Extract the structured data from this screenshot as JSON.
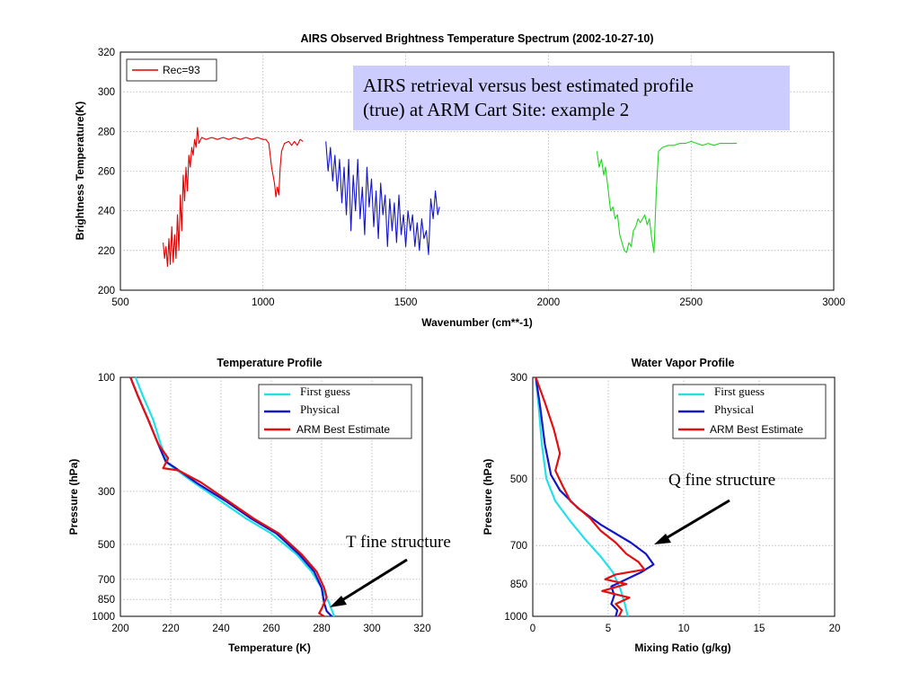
{
  "chart_data": [
    {
      "type": "line",
      "title": "AIRS Observed Brightness Temperature Spectrum (2002-10-27-10)",
      "xlabel": "Wavenumber (cm**-1)",
      "ylabel": "Brightness Temperature(K)",
      "xlim": [
        500,
        3000
      ],
      "ylim": [
        200,
        320
      ],
      "xticks": [
        "500",
        "1000",
        "1500",
        "2000",
        "2500",
        "3000"
      ],
      "yticks": [
        "200",
        "220",
        "240",
        "260",
        "280",
        "300",
        "320"
      ],
      "grid": true,
      "legend_position": "top-left",
      "legend": [
        {
          "label": "Rec=93",
          "color": "#e00000"
        }
      ],
      "series": [
        {
          "color": "#e00000",
          "points": [
            [
              650,
              224
            ],
            [
              655,
              216
            ],
            [
              660,
              222
            ],
            [
              665,
              212
            ],
            [
              670,
              226
            ],
            [
              675,
              213
            ],
            [
              680,
              232
            ],
            [
              685,
              214
            ],
            [
              690,
              228
            ],
            [
              695,
              216
            ],
            [
              700,
              238
            ],
            [
              705,
              220
            ],
            [
              710,
              248
            ],
            [
              715,
              230
            ],
            [
              720,
              258
            ],
            [
              725,
              245
            ],
            [
              730,
              262
            ],
            [
              735,
              250
            ],
            [
              740,
              268
            ],
            [
              745,
              262
            ],
            [
              750,
              272
            ],
            [
              755,
              268
            ],
            [
              760,
              276
            ],
            [
              765,
              272
            ],
            [
              770,
              282
            ],
            [
              775,
              274
            ],
            [
              785,
              277
            ],
            [
              800,
              276
            ],
            [
              820,
              277
            ],
            [
              840,
              276
            ],
            [
              860,
              277
            ],
            [
              880,
              276
            ],
            [
              900,
              277
            ],
            [
              920,
              276
            ],
            [
              940,
              277
            ],
            [
              960,
              276
            ],
            [
              980,
              277
            ],
            [
              1000,
              276
            ],
            [
              1010,
              276
            ],
            [
              1020,
              274
            ],
            [
              1030,
              262
            ],
            [
              1040,
              254
            ],
            [
              1045,
              247
            ],
            [
              1050,
              252
            ],
            [
              1055,
              248
            ],
            [
              1060,
              262
            ],
            [
              1065,
              270
            ],
            [
              1075,
              274
            ],
            [
              1090,
              275
            ],
            [
              1100,
              273
            ],
            [
              1110,
              275
            ],
            [
              1120,
              273
            ],
            [
              1130,
              276
            ],
            [
              1140,
              275
            ]
          ]
        },
        {
          "color": "#1515c8",
          "points": [
            [
              1220,
              275
            ],
            [
              1228,
              260
            ],
            [
              1236,
              272
            ],
            [
              1244,
              255
            ],
            [
              1252,
              268
            ],
            [
              1260,
              250
            ],
            [
              1268,
              266
            ],
            [
              1276,
              244
            ],
            [
              1284,
              262
            ],
            [
              1292,
              238
            ],
            [
              1300,
              266
            ],
            [
              1308,
              230
            ],
            [
              1316,
              258
            ],
            [
              1324,
              240
            ],
            [
              1332,
              266
            ],
            [
              1340,
              236
            ],
            [
              1348,
              252
            ],
            [
              1356,
              228
            ],
            [
              1364,
              262
            ],
            [
              1372,
              242
            ],
            [
              1380,
              256
            ],
            [
              1388,
              232
            ],
            [
              1396,
              250
            ],
            [
              1404,
              226
            ],
            [
              1412,
              254
            ],
            [
              1420,
              238
            ],
            [
              1428,
              248
            ],
            [
              1436,
              222
            ],
            [
              1444,
              246
            ],
            [
              1452,
              230
            ],
            [
              1460,
              244
            ],
            [
              1468,
              224
            ],
            [
              1476,
              248
            ],
            [
              1484,
              228
            ],
            [
              1492,
              238
            ],
            [
              1500,
              222
            ],
            [
              1508,
              240
            ],
            [
              1516,
              230
            ],
            [
              1524,
              238
            ],
            [
              1532,
              222
            ],
            [
              1540,
              234
            ],
            [
              1548,
              220
            ],
            [
              1556,
              236
            ],
            [
              1564,
              226
            ],
            [
              1572,
              230
            ],
            [
              1580,
              218
            ],
            [
              1588,
              246
            ],
            [
              1596,
              236
            ],
            [
              1604,
              250
            ],
            [
              1612,
              238
            ],
            [
              1618,
              242
            ]
          ]
        },
        {
          "color": "#22d422",
          "points": [
            [
              2170,
              270
            ],
            [
              2178,
              262
            ],
            [
              2186,
              266
            ],
            [
              2194,
              258
            ],
            [
              2200,
              262
            ],
            [
              2210,
              250
            ],
            [
              2218,
              240
            ],
            [
              2226,
              242
            ],
            [
              2234,
              236
            ],
            [
              2242,
              238
            ],
            [
              2250,
              228
            ],
            [
              2258,
              224
            ],
            [
              2266,
              220
            ],
            [
              2274,
              219
            ],
            [
              2282,
              224
            ],
            [
              2290,
              222
            ],
            [
              2298,
              230
            ],
            [
              2306,
              232
            ],
            [
              2314,
              236
            ],
            [
              2322,
              234
            ],
            [
              2330,
              236
            ],
            [
              2338,
              238
            ],
            [
              2346,
              233
            ],
            [
              2354,
              236
            ],
            [
              2362,
              226
            ],
            [
              2370,
              219
            ],
            [
              2378,
              250
            ],
            [
              2386,
              270
            ],
            [
              2400,
              272
            ],
            [
              2420,
              273
            ],
            [
              2440,
              273
            ],
            [
              2460,
              274
            ],
            [
              2480,
              274
            ],
            [
              2500,
              275
            ],
            [
              2520,
              274
            ],
            [
              2540,
              273
            ],
            [
              2560,
              274
            ],
            [
              2580,
              273
            ],
            [
              2600,
              274
            ],
            [
              2620,
              274
            ],
            [
              2640,
              274
            ],
            [
              2660,
              274
            ]
          ]
        }
      ]
    },
    {
      "type": "line",
      "title": "Temperature Profile",
      "xlabel": "Temperature (K)",
      "ylabel": "Pressure (hPa)",
      "xlim": [
        200,
        320
      ],
      "ylim": [
        1000,
        100
      ],
      "xticks": [
        "200",
        "220",
        "240",
        "260",
        "280",
        "300",
        "320"
      ],
      "yticks": [
        {
          "label": "100",
          "value": 100
        },
        {
          "label": "300",
          "value": 300
        },
        {
          "label": "500",
          "value": 500
        },
        {
          "label": "700",
          "value": 700
        },
        {
          "label": "850",
          "value": 850
        },
        {
          "label": "1000",
          "value": 1000
        }
      ],
      "grid": true,
      "legend_position": "top-right",
      "series": [
        {
          "name": "First guess",
          "color": "#22e0e8",
          "points": [
            [
              206,
              100
            ],
            [
              209,
              120
            ],
            [
              213,
              150
            ],
            [
              216,
              190
            ],
            [
              219,
              230
            ],
            [
              228,
              270
            ],
            [
              240,
              330
            ],
            [
              250,
              390
            ],
            [
              260,
              450
            ],
            [
              270,
              550
            ],
            [
              276,
              650
            ],
            [
              280,
              760
            ],
            [
              283,
              880
            ],
            [
              285,
              1000
            ]
          ]
        },
        {
          "name": "Physical",
          "color": "#1515c8",
          "points": [
            [
              204,
              100
            ],
            [
              207,
              120
            ],
            [
              211,
              150
            ],
            [
              215,
              190
            ],
            [
              218,
              225
            ],
            [
              222,
              240
            ],
            [
              230,
              275
            ],
            [
              242,
              330
            ],
            [
              252,
              390
            ],
            [
              262,
              450
            ],
            [
              271,
              550
            ],
            [
              277,
              650
            ],
            [
              280,
              760
            ],
            [
              281,
              880
            ],
            [
              282,
              950
            ],
            [
              284,
              1000
            ]
          ]
        },
        {
          "name": "ARM Best Estimate",
          "color": "#e01010",
          "points": [
            [
              204,
              100
            ],
            [
              207,
              120
            ],
            [
              211,
              150
            ],
            [
              215,
              190
            ],
            [
              219,
              218
            ],
            [
              217,
              240
            ],
            [
              223,
              245
            ],
            [
              232,
              275
            ],
            [
              243,
              330
            ],
            [
              253,
              390
            ],
            [
              263,
              450
            ],
            [
              272,
              550
            ],
            [
              278,
              650
            ],
            [
              281,
              760
            ],
            [
              282,
              830
            ],
            [
              281,
              880
            ],
            [
              280,
              930
            ],
            [
              279,
              970
            ],
            [
              281,
              1000
            ]
          ]
        }
      ]
    },
    {
      "type": "line",
      "title": "Water Vapor Profile",
      "xlabel": "Mixing Ratio (g/kg)",
      "ylabel": "Pressure (hPa)",
      "xlim": [
        0,
        20
      ],
      "ylim": [
        1000,
        300
      ],
      "xticks": [
        "0",
        "5",
        "10",
        "15",
        "20"
      ],
      "yticks": [
        {
          "label": "300",
          "value": 300
        },
        {
          "label": "500",
          "value": 500
        },
        {
          "label": "700",
          "value": 700
        },
        {
          "label": "850",
          "value": 850
        },
        {
          "label": "1000",
          "value": 1000
        }
      ],
      "grid": true,
      "legend_position": "top-right",
      "series": [
        {
          "name": "First guess",
          "color": "#22e0e8",
          "points": [
            [
              0.2,
              300
            ],
            [
              0.4,
              350
            ],
            [
              0.6,
              420
            ],
            [
              0.9,
              500
            ],
            [
              1.5,
              560
            ],
            [
              2.5,
              620
            ],
            [
              3.5,
              680
            ],
            [
              4.5,
              740
            ],
            [
              5.3,
              800
            ],
            [
              5.8,
              870
            ],
            [
              6.1,
              940
            ],
            [
              6.3,
              1000
            ]
          ]
        },
        {
          "name": "Physical",
          "color": "#1515c8",
          "points": [
            [
              0.2,
              300
            ],
            [
              0.5,
              350
            ],
            [
              0.8,
              420
            ],
            [
              1.2,
              490
            ],
            [
              1.8,
              530
            ],
            [
              3,
              580
            ],
            [
              4.5,
              630
            ],
            [
              6.5,
              690
            ],
            [
              7.5,
              730
            ],
            [
              8.0,
              770
            ],
            [
              7.2,
              800
            ],
            [
              6.2,
              830
            ],
            [
              5.2,
              860
            ],
            [
              5.4,
              900
            ],
            [
              5.2,
              940
            ],
            [
              5.6,
              970
            ],
            [
              5.5,
              1000
            ]
          ]
        },
        {
          "name": "ARM Best Estimate",
          "color": "#e01010",
          "points": [
            [
              0.2,
              300
            ],
            [
              0.8,
              340
            ],
            [
              1.4,
              390
            ],
            [
              1.8,
              440
            ],
            [
              1.5,
              480
            ],
            [
              2.0,
              520
            ],
            [
              2.5,
              560
            ],
            [
              3.8,
              610
            ],
            [
              4.5,
              650
            ],
            [
              5.5,
              690
            ],
            [
              6.2,
              730
            ],
            [
              7.0,
              760
            ],
            [
              7.4,
              790
            ],
            [
              5.5,
              810
            ],
            [
              4.8,
              830
            ],
            [
              6.2,
              850
            ],
            [
              4.6,
              880
            ],
            [
              6.4,
              910
            ],
            [
              5.5,
              940
            ],
            [
              5.9,
              970
            ],
            [
              5.7,
              1000
            ]
          ]
        }
      ]
    }
  ],
  "callout": {
    "line1": "AIRS retrieval versus best estimated profile",
    "line2": "(true) at ARM Cart Site: example 2"
  },
  "annotations": {
    "t_fine": "T fine structure",
    "q_fine": "Q fine structure"
  }
}
